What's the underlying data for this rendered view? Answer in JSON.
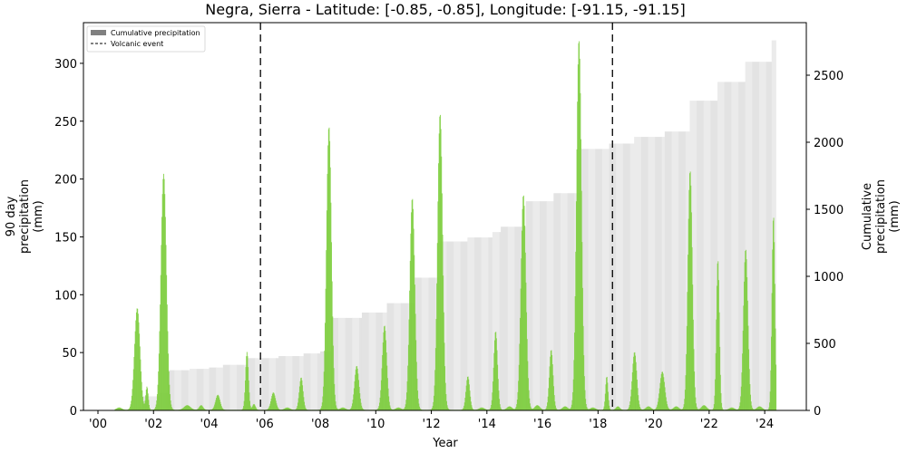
{
  "chart_data": {
    "type": "bar",
    "title": "Negra, Sierra - Latitude: [-0.85, -0.85], Longitude: [-91.15, -91.15]",
    "xlabel": "Year",
    "ylabel_left": [
      "90 day",
      "precipitation",
      "(mm)"
    ],
    "ylabel_right": [
      "Cumulative",
      "precipitation",
      "(mm)"
    ],
    "x_range": [
      1999.5,
      2025.5
    ],
    "ylim_left": [
      0,
      335
    ],
    "ylim_right": [
      0,
      2900
    ],
    "x_ticks": [
      {
        "value": 2000,
        "label": "'00"
      },
      {
        "value": 2002,
        "label": "'02"
      },
      {
        "value": 2004,
        "label": "'04"
      },
      {
        "value": 2006,
        "label": "'06"
      },
      {
        "value": 2008,
        "label": "'08"
      },
      {
        "value": 2010,
        "label": "'10"
      },
      {
        "value": 2012,
        "label": "'12"
      },
      {
        "value": 2014,
        "label": "'14"
      },
      {
        "value": 2016,
        "label": "'16"
      },
      {
        "value": 2018,
        "label": "'18"
      },
      {
        "value": 2020,
        "label": "'20"
      },
      {
        "value": 2022,
        "label": "'22"
      },
      {
        "value": 2024,
        "label": "'24"
      }
    ],
    "y_ticks_left": [
      0,
      50,
      100,
      150,
      200,
      250,
      300
    ],
    "y_ticks_right": [
      0,
      500,
      1000,
      1500,
      2000,
      2500
    ],
    "legend": [
      {
        "label": "Cumulative precipitation",
        "type": "patch",
        "color": "#808080"
      },
      {
        "label": "Volcanic event",
        "type": "dashed-line",
        "color": "#000000"
      }
    ],
    "legend_position": "upper left",
    "grid": false,
    "volcanic_events": [
      2005.85,
      2018.52
    ],
    "series": [
      {
        "name": "90 day precipitation",
        "axis": "left",
        "color": "#7ccd3c",
        "peaks": [
          {
            "x": 2000.75,
            "y": 2,
            "w": 0.2
          },
          {
            "x": 2001.4,
            "y": 88,
            "w": 0.22
          },
          {
            "x": 2001.75,
            "y": 20,
            "w": 0.1
          },
          {
            "x": 2002.35,
            "y": 204,
            "w": 0.22
          },
          {
            "x": 2003.2,
            "y": 4,
            "w": 0.25
          },
          {
            "x": 2003.7,
            "y": 4,
            "w": 0.15
          },
          {
            "x": 2004.3,
            "y": 13,
            "w": 0.18
          },
          {
            "x": 2005.35,
            "y": 50,
            "w": 0.12
          },
          {
            "x": 2005.6,
            "y": 5,
            "w": 0.12
          },
          {
            "x": 2006.3,
            "y": 15,
            "w": 0.18
          },
          {
            "x": 2006.8,
            "y": 2,
            "w": 0.2
          },
          {
            "x": 2007.3,
            "y": 28,
            "w": 0.15
          },
          {
            "x": 2008.3,
            "y": 245,
            "w": 0.2
          },
          {
            "x": 2008.8,
            "y": 2,
            "w": 0.2
          },
          {
            "x": 2009.3,
            "y": 38,
            "w": 0.18
          },
          {
            "x": 2010.3,
            "y": 73,
            "w": 0.18
          },
          {
            "x": 2010.8,
            "y": 2,
            "w": 0.2
          },
          {
            "x": 2011.3,
            "y": 183,
            "w": 0.2
          },
          {
            "x": 2012.3,
            "y": 256,
            "w": 0.2
          },
          {
            "x": 2013.3,
            "y": 29,
            "w": 0.15
          },
          {
            "x": 2013.8,
            "y": 2,
            "w": 0.2
          },
          {
            "x": 2014.3,
            "y": 68,
            "w": 0.15
          },
          {
            "x": 2014.8,
            "y": 3,
            "w": 0.2
          },
          {
            "x": 2015.3,
            "y": 186,
            "w": 0.2
          },
          {
            "x": 2015.8,
            "y": 4,
            "w": 0.2
          },
          {
            "x": 2016.3,
            "y": 52,
            "w": 0.15
          },
          {
            "x": 2016.8,
            "y": 3,
            "w": 0.2
          },
          {
            "x": 2017.3,
            "y": 320,
            "w": 0.2
          },
          {
            "x": 2017.8,
            "y": 2,
            "w": 0.2
          },
          {
            "x": 2018.3,
            "y": 29,
            "w": 0.1
          },
          {
            "x": 2018.7,
            "y": 3,
            "w": 0.15
          },
          {
            "x": 2019.3,
            "y": 50,
            "w": 0.18
          },
          {
            "x": 2019.8,
            "y": 3,
            "w": 0.2
          },
          {
            "x": 2020.3,
            "y": 33,
            "w": 0.2
          },
          {
            "x": 2020.8,
            "y": 3,
            "w": 0.2
          },
          {
            "x": 2021.3,
            "y": 207,
            "w": 0.18
          },
          {
            "x": 2021.8,
            "y": 4,
            "w": 0.2
          },
          {
            "x": 2022.3,
            "y": 130,
            "w": 0.12
          },
          {
            "x": 2022.8,
            "y": 2,
            "w": 0.2
          },
          {
            "x": 2023.3,
            "y": 139,
            "w": 0.18
          },
          {
            "x": 2023.8,
            "y": 3,
            "w": 0.2
          },
          {
            "x": 2024.3,
            "y": 168,
            "w": 0.12
          }
        ]
      },
      {
        "name": "Cumulative precipitation",
        "axis": "right",
        "color": "#e4e4e4",
        "steps": [
          {
            "x": 2000.7,
            "y": 5
          },
          {
            "x": 2001.2,
            "y": 20
          },
          {
            "x": 2001.6,
            "y": 105
          },
          {
            "x": 2002.2,
            "y": 130
          },
          {
            "x": 2002.5,
            "y": 300
          },
          {
            "x": 2003.3,
            "y": 310
          },
          {
            "x": 2004.0,
            "y": 320
          },
          {
            "x": 2004.5,
            "y": 340
          },
          {
            "x": 2005.4,
            "y": 390
          },
          {
            "x": 2006.5,
            "y": 405
          },
          {
            "x": 2007.4,
            "y": 425
          },
          {
            "x": 2008.0,
            "y": 440
          },
          {
            "x": 2008.4,
            "y": 690
          },
          {
            "x": 2009.5,
            "y": 730
          },
          {
            "x": 2010.4,
            "y": 800
          },
          {
            "x": 2011.4,
            "y": 990
          },
          {
            "x": 2012.3,
            "y": 1260
          },
          {
            "x": 2013.3,
            "y": 1290
          },
          {
            "x": 2014.2,
            "y": 1330
          },
          {
            "x": 2014.5,
            "y": 1370
          },
          {
            "x": 2015.4,
            "y": 1560
          },
          {
            "x": 2016.4,
            "y": 1620
          },
          {
            "x": 2017.4,
            "y": 1950
          },
          {
            "x": 2018.4,
            "y": 1990
          },
          {
            "x": 2019.3,
            "y": 2040
          },
          {
            "x": 2020.4,
            "y": 2080
          },
          {
            "x": 2021.3,
            "y": 2310
          },
          {
            "x": 2022.3,
            "y": 2450
          },
          {
            "x": 2023.3,
            "y": 2600
          },
          {
            "x": 2024.25,
            "y": 2760
          }
        ],
        "end_x": 2024.4
      }
    ]
  }
}
